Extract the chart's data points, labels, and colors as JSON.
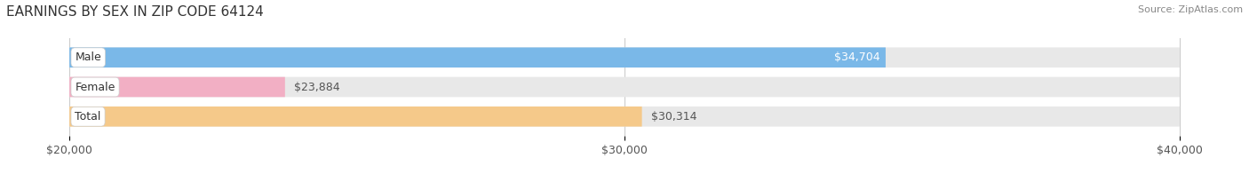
{
  "title": "EARNINGS BY SEX IN ZIP CODE 64124",
  "source": "Source: ZipAtlas.com",
  "categories": [
    "Male",
    "Female",
    "Total"
  ],
  "values": [
    34704,
    23884,
    30314
  ],
  "bar_colors": [
    "#7ab8e8",
    "#f2afc4",
    "#f5c98a"
  ],
  "xlim": [
    20000,
    40000
  ],
  "xticks": [
    20000,
    30000,
    40000
  ],
  "xtick_labels": [
    "$20,000",
    "$30,000",
    "$40,000"
  ],
  "bar_height": 0.68,
  "background_color": "#ffffff",
  "bar_track_color": "#e8e8e8",
  "title_fontsize": 11,
  "label_fontsize": 9,
  "tick_fontsize": 9,
  "value_labels": [
    "$34,704",
    "$23,884",
    "$30,314"
  ],
  "value_label_colors": [
    "#ffffff",
    "#555555",
    "#555555"
  ],
  "value_label_inside": [
    true,
    false,
    false
  ]
}
